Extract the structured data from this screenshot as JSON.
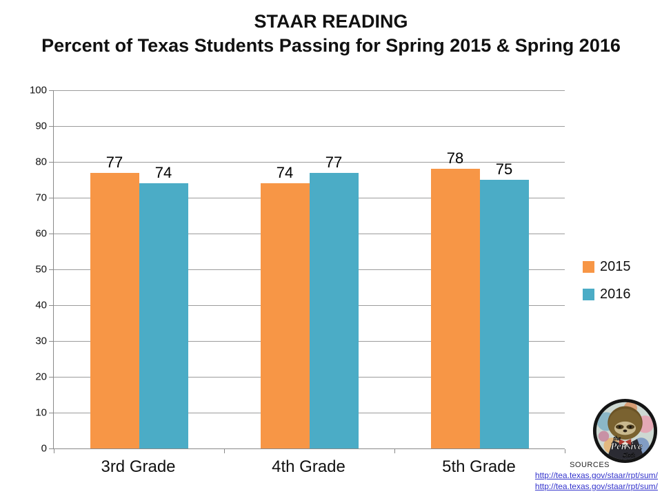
{
  "title": {
    "line1": "STAAR READING",
    "line2": "Percent of Texas Students Passing for Spring 2015 & Spring 2016"
  },
  "chart_data": {
    "type": "bar",
    "title": "STAAR READING",
    "subtitle": "Percent of Texas Students Passing for Spring 2015 & Spring 2016",
    "categories": [
      "3rd Grade",
      "4th Grade",
      "5th Grade"
    ],
    "series": [
      {
        "name": "2015",
        "color": "#F79646",
        "values": [
          77,
          74,
          78
        ]
      },
      {
        "name": "2016",
        "color": "#4BACC6",
        "values": [
          74,
          77,
          75
        ]
      }
    ],
    "xlabel": "",
    "ylabel": "",
    "ylim": [
      0,
      100
    ],
    "ytick_step": 10,
    "grid": true,
    "legend_position": "right",
    "data_labels": true
  },
  "colors": {
    "bar_2015": "#F79646",
    "bar_2016": "#4BACC6",
    "gridline": "#9B9B9B",
    "axis": "#898989",
    "link": "#3333CC"
  },
  "footer": {
    "sources_label": "SOURCES",
    "links": [
      "http://tea.texas.gov/staar/rpt/sum/",
      "http://tea.texas.gov/staar/rpt/sum/"
    ]
  },
  "logo": {
    "text_top": "the",
    "text_mid": "Pensive",
    "text_bottom": "Sloth"
  }
}
